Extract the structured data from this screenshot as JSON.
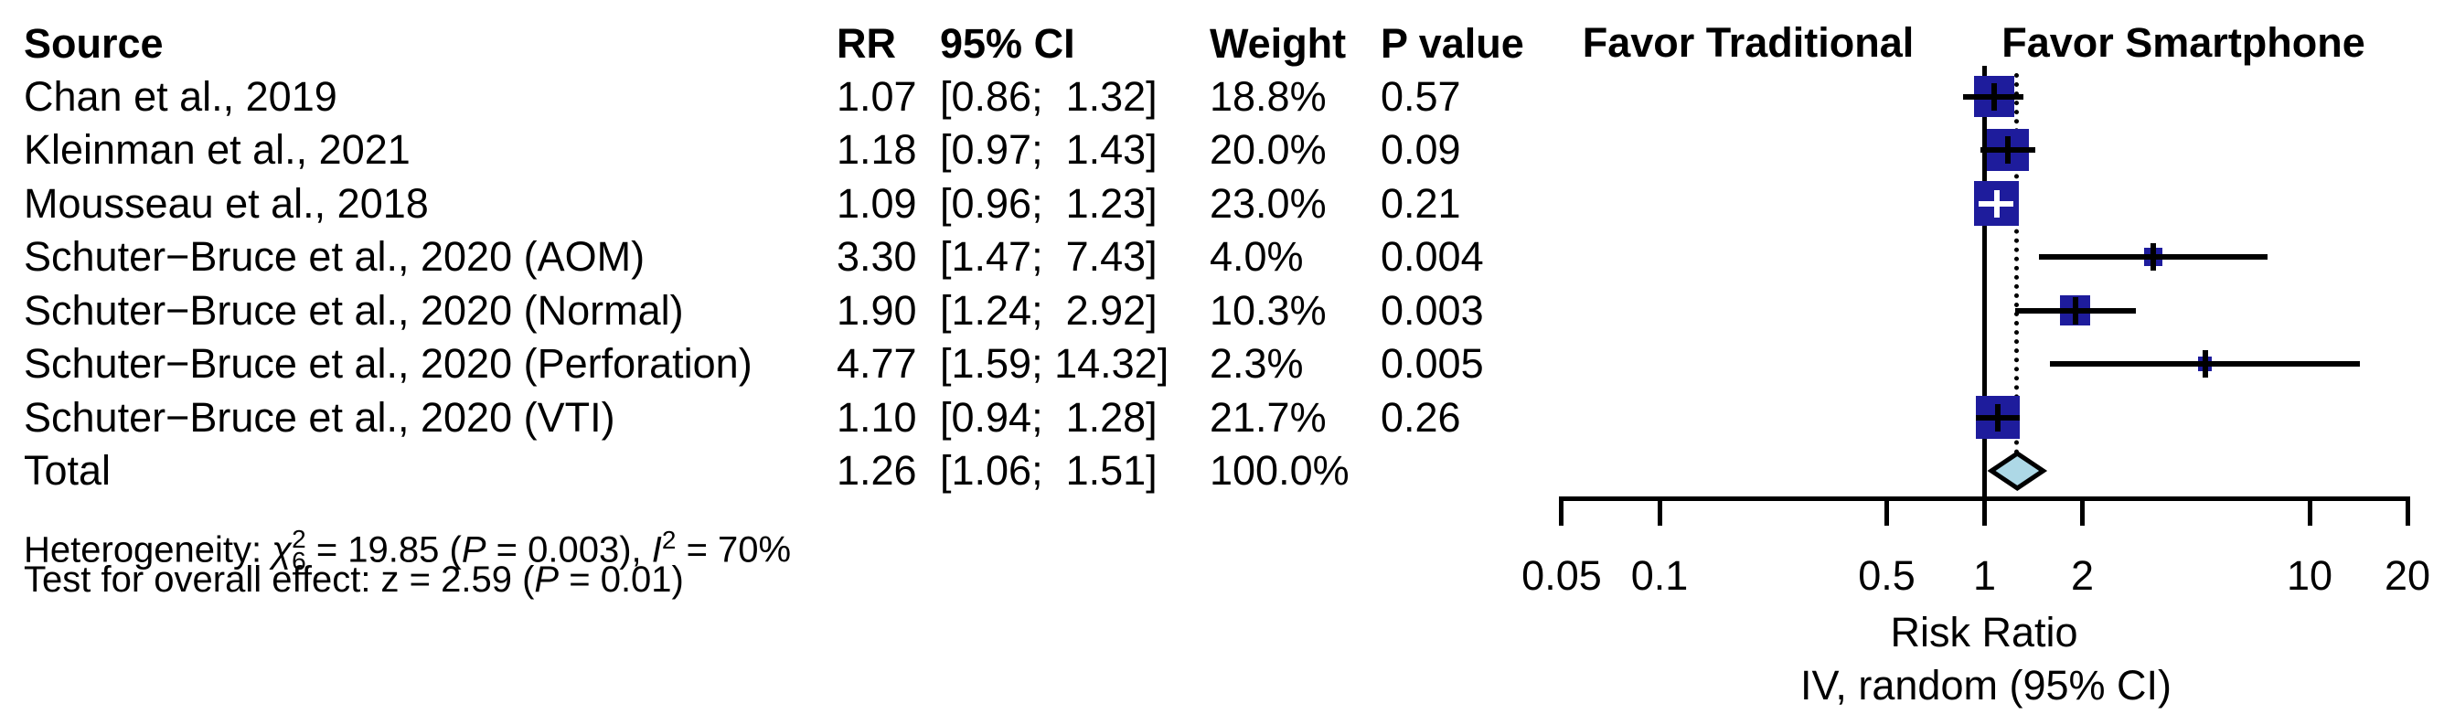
{
  "table": {
    "headers": {
      "source": "Source",
      "rr": "RR",
      "ci": "95% CI",
      "weight": "Weight",
      "pvalue": "P value"
    },
    "rows": [
      {
        "source": "Chan et al., 2019",
        "rr": "1.07",
        "ci": "[0.86;  1.32]",
        "weight": "18.8%",
        "pvalue": "0.57"
      },
      {
        "source": "Kleinman et al., 2021",
        "rr": "1.18",
        "ci": "[0.97;  1.43]",
        "weight": "20.0%",
        "pvalue": "0.09"
      },
      {
        "source": "Mousseau et al., 2018",
        "rr": "1.09",
        "ci": "[0.96;  1.23]",
        "weight": "23.0%",
        "pvalue": "0.21"
      },
      {
        "source": "Schuter−Bruce et al., 2020 (AOM)",
        "rr": "3.30",
        "ci": "[1.47;  7.43]",
        "weight": "4.0%",
        "pvalue": "0.004"
      },
      {
        "source": "Schuter−Bruce et al., 2020 (Normal)",
        "rr": "1.90",
        "ci": "[1.24;  2.92]",
        "weight": "10.3%",
        "pvalue": "0.003"
      },
      {
        "source": "Schuter−Bruce et al., 2020 (Perforation)",
        "rr": "4.77",
        "ci": "[1.59; 14.32]",
        "weight": "2.3%",
        "pvalue": "0.005"
      },
      {
        "source": "Schuter−Bruce et al., 2020 (VTI)",
        "rr": "1.10",
        "ci": "[0.94;  1.28]",
        "weight": "21.7%",
        "pvalue": "0.26"
      },
      {
        "source": "Total",
        "rr": "1.26",
        "ci": "[1.06;  1.51]",
        "weight": "100.0%",
        "pvalue": ""
      }
    ]
  },
  "footer": {
    "line1": {
      "prefix": "Heterogeneity: ",
      "chi": "χ",
      "chi_sup": "2",
      "chi_sub": "6",
      "mid": " = 19.85 (",
      "p": "P",
      "after_p": " = 0.003), ",
      "i": "I",
      "i_sup": "2",
      "tail": " = 70%"
    },
    "line2": {
      "prefix": "Test for overall effect: z = 2.59 (",
      "p": "P",
      "tail": " = 0.01)"
    }
  },
  "plot": {
    "favor_left": "Favor Traditional",
    "favor_right": "Favor Smartphone",
    "xlabel_line1": "Risk Ratio",
    "xlabel_line2": "IV, random (95% CI)",
    "tick_labels": [
      "0.05",
      "0.1",
      "0.5",
      "1",
      "2",
      "10",
      "20"
    ]
  },
  "chart_data": {
    "type": "forest",
    "effect_measure": "Risk Ratio",
    "model": "IV, random (95% CI)",
    "x_scale": "log",
    "x_ticks": [
      0.05,
      0.1,
      0.5,
      1,
      2,
      10,
      20
    ],
    "xlim": [
      0.05,
      20
    ],
    "null_value": 1,
    "left_label": "Favor Traditional",
    "right_label": "Favor Smartphone",
    "studies": [
      {
        "label": "Chan et al., 2019",
        "rr": 1.07,
        "ci_low": 0.86,
        "ci_high": 1.32,
        "weight_pct": 18.8,
        "p_value": "0.57"
      },
      {
        "label": "Kleinman et al., 2021",
        "rr": 1.18,
        "ci_low": 0.97,
        "ci_high": 1.43,
        "weight_pct": 20.0,
        "p_value": "0.09"
      },
      {
        "label": "Mousseau et al., 2018",
        "rr": 1.09,
        "ci_low": 0.96,
        "ci_high": 1.23,
        "weight_pct": 23.0,
        "p_value": "0.21"
      },
      {
        "label": "Schuter−Bruce et al., 2020 (AOM)",
        "rr": 3.3,
        "ci_low": 1.47,
        "ci_high": 7.43,
        "weight_pct": 4.0,
        "p_value": "0.004"
      },
      {
        "label": "Schuter−Bruce et al., 2020 (Normal)",
        "rr": 1.9,
        "ci_low": 1.24,
        "ci_high": 2.92,
        "weight_pct": 10.3,
        "p_value": "0.003"
      },
      {
        "label": "Schuter−Bruce et al., 2020 (Perforation)",
        "rr": 4.77,
        "ci_low": 1.59,
        "ci_high": 14.32,
        "weight_pct": 2.3,
        "p_value": "0.005"
      },
      {
        "label": "Schuter−Bruce et al., 2020 (VTI)",
        "rr": 1.1,
        "ci_low": 0.94,
        "ci_high": 1.28,
        "weight_pct": 21.7,
        "p_value": "0.26"
      }
    ],
    "pooled": {
      "label": "Total",
      "rr": 1.26,
      "ci_low": 1.06,
      "ci_high": 1.51,
      "weight_pct": 100.0
    },
    "heterogeneity": "chi2(6) = 19.85 (P = 0.003), I2 = 70%",
    "overall_effect": "z = 2.59 (P = 0.01)",
    "colors": {
      "square": "#1e1c9c",
      "diamond_fill": "#add8e6",
      "line": "#000000"
    }
  }
}
